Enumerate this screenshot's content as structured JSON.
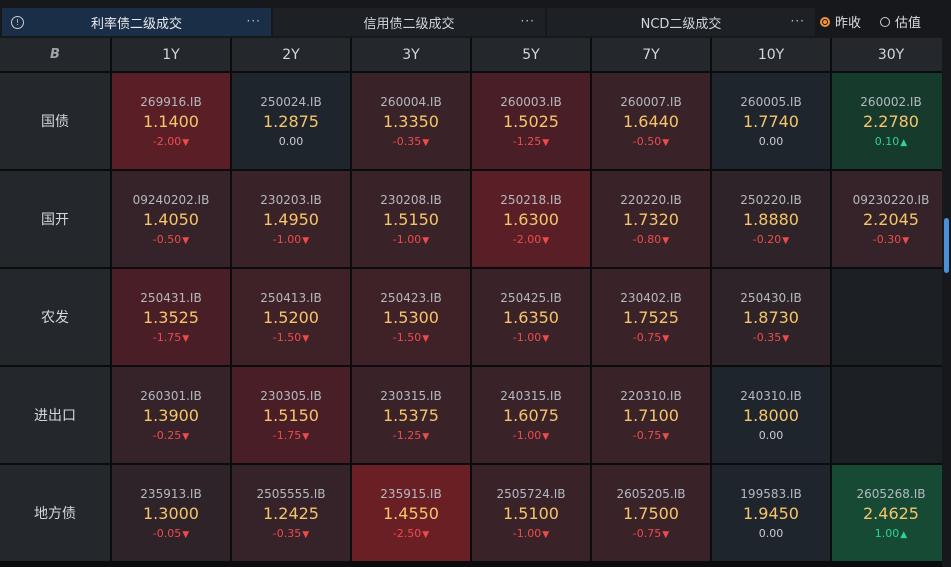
{
  "tabs": [
    {
      "label": "利率债二级成交",
      "more": "···",
      "active": true
    },
    {
      "label": "信用债二级成交",
      "more": "···",
      "active": false
    },
    {
      "label": "NCD二级成交",
      "more": "···",
      "active": false
    }
  ],
  "radios": [
    {
      "label": "昨收",
      "checked": true
    },
    {
      "label": "估值",
      "checked": false
    }
  ],
  "corner_logo": "B",
  "columns": [
    "1Y",
    "2Y",
    "3Y",
    "5Y",
    "7Y",
    "10Y",
    "30Y"
  ],
  "rows": [
    {
      "label": "国债",
      "cells": [
        {
          "code": "269916.IB",
          "yield": "1.1400",
          "change": "-2.00",
          "dir": "down",
          "bg": "#5a1f26"
        },
        {
          "code": "250024.IB",
          "yield": "1.2875",
          "change": "0.00",
          "dir": "flat",
          "bg": "#1f252c"
        },
        {
          "code": "260004.IB",
          "yield": "1.3350",
          "change": "-0.35",
          "dir": "down",
          "bg": "#3a2229"
        },
        {
          "code": "260003.IB",
          "yield": "1.5025",
          "change": "-1.25",
          "dir": "down",
          "bg": "#4a1e26"
        },
        {
          "code": "260007.IB",
          "yield": "1.6440",
          "change": "-0.50",
          "dir": "down",
          "bg": "#3a2229"
        },
        {
          "code": "260005.IB",
          "yield": "1.7740",
          "change": "0.00",
          "dir": "flat",
          "bg": "#1f252c"
        },
        {
          "code": "260002.IB",
          "yield": "2.2780",
          "change": "0.10",
          "dir": "up",
          "bg": "#163a2c"
        }
      ]
    },
    {
      "label": "国开",
      "cells": [
        {
          "code": "09240202.IB",
          "yield": "1.4050",
          "change": "-0.50",
          "dir": "down",
          "bg": "#352329"
        },
        {
          "code": "230203.IB",
          "yield": "1.4950",
          "change": "-1.00",
          "dir": "down",
          "bg": "#3a2229"
        },
        {
          "code": "230208.IB",
          "yield": "1.5150",
          "change": "-1.00",
          "dir": "down",
          "bg": "#3a2229"
        },
        {
          "code": "250218.IB",
          "yield": "1.6300",
          "change": "-2.00",
          "dir": "down",
          "bg": "#5a1f26"
        },
        {
          "code": "220220.IB",
          "yield": "1.7320",
          "change": "-0.80",
          "dir": "down",
          "bg": "#3a2229"
        },
        {
          "code": "250220.IB",
          "yield": "1.8880",
          "change": "-0.20",
          "dir": "down",
          "bg": "#2e2329"
        },
        {
          "code": "09230220.IB",
          "yield": "2.2045",
          "change": "-0.30",
          "dir": "down",
          "bg": "#352329"
        }
      ]
    },
    {
      "label": "农发",
      "cells": [
        {
          "code": "250431.IB",
          "yield": "1.3525",
          "change": "-1.75",
          "dir": "down",
          "bg": "#4a1e26"
        },
        {
          "code": "250413.IB",
          "yield": "1.5200",
          "change": "-1.50",
          "dir": "down",
          "bg": "#3f2128"
        },
        {
          "code": "250423.IB",
          "yield": "1.5300",
          "change": "-1.50",
          "dir": "down",
          "bg": "#3f2128"
        },
        {
          "code": "250425.IB",
          "yield": "1.6350",
          "change": "-1.00",
          "dir": "down",
          "bg": "#3a2229"
        },
        {
          "code": "230402.IB",
          "yield": "1.7525",
          "change": "-0.75",
          "dir": "down",
          "bg": "#3a2229"
        },
        {
          "code": "250430.IB",
          "yield": "1.8730",
          "change": "-0.35",
          "dir": "down",
          "bg": "#2e2329"
        },
        null
      ]
    },
    {
      "label": "进出口",
      "cells": [
        {
          "code": "260301.IB",
          "yield": "1.3900",
          "change": "-0.25",
          "dir": "down",
          "bg": "#352329"
        },
        {
          "code": "230305.IB",
          "yield": "1.5150",
          "change": "-1.75",
          "dir": "down",
          "bg": "#4a1e26"
        },
        {
          "code": "230315.IB",
          "yield": "1.5375",
          "change": "-1.25",
          "dir": "down",
          "bg": "#3a2229"
        },
        {
          "code": "240315.IB",
          "yield": "1.6075",
          "change": "-1.00",
          "dir": "down",
          "bg": "#3a2229"
        },
        {
          "code": "220310.IB",
          "yield": "1.7100",
          "change": "-0.75",
          "dir": "down",
          "bg": "#3a2229"
        },
        {
          "code": "240310.IB",
          "yield": "1.8000",
          "change": "0.00",
          "dir": "flat",
          "bg": "#1f252c"
        },
        null
      ]
    },
    {
      "label": "地方债",
      "cells": [
        {
          "code": "235913.IB",
          "yield": "1.3000",
          "change": "-0.05",
          "dir": "down",
          "bg": "#2e2329"
        },
        {
          "code": "2505555.IB",
          "yield": "1.2425",
          "change": "-0.35",
          "dir": "down",
          "bg": "#352329"
        },
        {
          "code": "235915.IB",
          "yield": "1.4550",
          "change": "-2.50",
          "dir": "down",
          "bg": "#6a1f25"
        },
        {
          "code": "2505724.IB",
          "yield": "1.5100",
          "change": "-1.00",
          "dir": "down",
          "bg": "#3a2229"
        },
        {
          "code": "2605205.IB",
          "yield": "1.7500",
          "change": "-0.75",
          "dir": "down",
          "bg": "#3a2229"
        },
        {
          "code": "199583.IB",
          "yield": "1.9450",
          "change": "0.00",
          "dir": "flat",
          "bg": "#1f252c"
        },
        {
          "code": "2605268.IB",
          "yield": "2.4625",
          "change": "1.00",
          "dir": "up",
          "bg": "#174a34"
        }
      ]
    }
  ]
}
